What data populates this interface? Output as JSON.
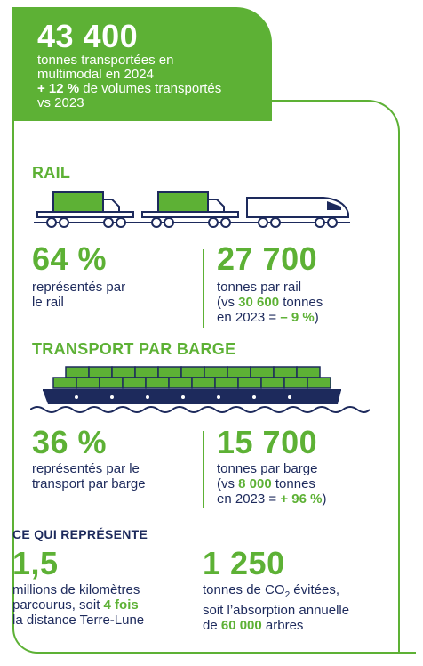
{
  "header": {
    "value": "43 400",
    "line1": "tonnes transportées en",
    "line2": "multimodal en 2024",
    "growth_bold": "+ 12 %",
    "growth_rest": " de volumes transportés",
    "growth_line2": "vs 2023"
  },
  "rail": {
    "title": "RAIL",
    "share_value": "64 %",
    "share_line1": "représentés par",
    "share_line2": "le rail",
    "tonnes_value": "27 700",
    "tonnes_line1": "tonnes par rail",
    "cmp_prefix": "(vs ",
    "cmp_bold": "30 600",
    "cmp_suffix": " tonnes",
    "cmp_line2_prefix": "en 2023 = ",
    "cmp_line2_bold": "– 9 %",
    "cmp_line2_suffix": ")"
  },
  "barge": {
    "title": "TRANSPORT PAR BARGE",
    "share_value": "36 %",
    "share_line1": "représentés par le",
    "share_line2": "transport par barge",
    "tonnes_value": "15 700",
    "tonnes_line1": "tonnes par barge",
    "cmp_prefix": "(vs ",
    "cmp_bold": "8 000",
    "cmp_suffix": " tonnes",
    "cmp_line2_prefix": "en 2023 = ",
    "cmp_line2_bold": "+ 96 %",
    "cmp_line2_suffix": ")"
  },
  "summary": {
    "title": "CE QUI REPRÉSENTE",
    "km_value": "1,5",
    "km_line1": "millions de kilomètres",
    "km_line2_prefix": "parcourus, soit ",
    "km_line2_bold": "4 fois",
    "km_line3": "la distance Terre-Lune",
    "co2_value": "1 250",
    "co2_line1_prefix": "tonnes de CO",
    "co2_line1_sub": "2",
    "co2_line1_suffix": " évitées,",
    "co2_line2": "soit l’absorption annuelle",
    "co2_line3_prefix": "de ",
    "co2_line3_bold": "60 000",
    "co2_line3_suffix": " arbres"
  },
  "colors": {
    "green": "#5db135",
    "navy": "#1d2a5c",
    "barge_green": "#5db135"
  },
  "icons": [
    "train-illustration",
    "barge-illustration"
  ]
}
